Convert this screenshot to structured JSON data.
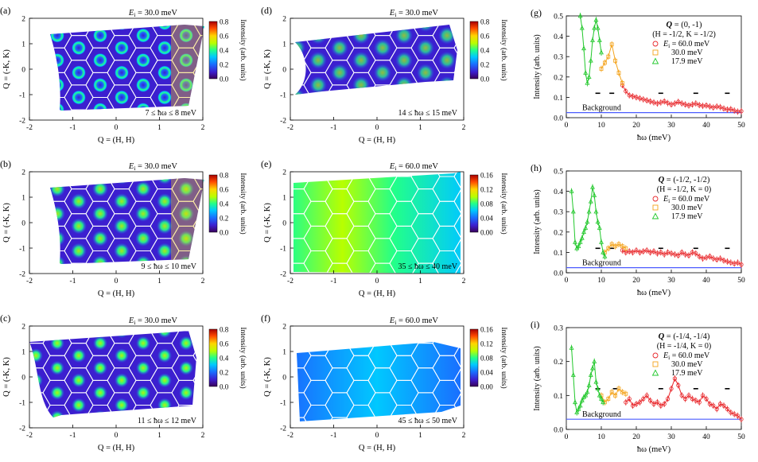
{
  "colors": {
    "cmap": [
      "#3a005a",
      "#3c1fcf",
      "#1a6cff",
      "#00c8ff",
      "#22ff8a",
      "#b8ff00",
      "#ffd500",
      "#ff4a00",
      "#a80000"
    ],
    "hex_grid": "#ffffff",
    "red": "#e8262a",
    "orange": "#f4a31b",
    "green": "#22c82c",
    "background_line": "#4b5bff"
  },
  "maps": [
    {
      "id": "a",
      "label": "(a)",
      "ei_text": "E",
      "ei_sub": "i",
      "ei_value": " = 30.0 meV",
      "range_text": "7 ≤ ħω ≤ 8 meV",
      "xlabel": "Q = (H, H)",
      "ylabel": "Q = (-K, K)",
      "xticks": [
        "-2",
        "-1",
        "0",
        "1",
        "2"
      ],
      "yticks": [
        "2",
        "1",
        "0",
        "-1",
        "-2"
      ],
      "cbar_ticks": [
        "0.8",
        "0.6",
        "0.4",
        "0.2",
        "0.0"
      ],
      "cbar_label": "Intensity (arb. units)"
    },
    {
      "id": "b",
      "label": "(b)",
      "ei_text": "E",
      "ei_sub": "i",
      "ei_value": " = 30.0 meV",
      "range_text": "9 ≤ ħω ≤ 10 meV",
      "xlabel": "Q = (H, H)",
      "ylabel": "Q = (-K, K)",
      "xticks": [
        "-2",
        "-1",
        "0",
        "1",
        "2"
      ],
      "yticks": [
        "2",
        "1",
        "0",
        "-1",
        "-2"
      ],
      "cbar_ticks": [
        "0.8",
        "0.6",
        "0.4",
        "0.2",
        "0.0"
      ],
      "cbar_label": "Intensity (arb. units)"
    },
    {
      "id": "c",
      "label": "(c)",
      "ei_text": "E",
      "ei_sub": "i",
      "ei_value": " = 30.0 meV",
      "range_text": "11 ≤ ħω ≤ 12 meV",
      "xlabel": "Q = (H, H)",
      "ylabel": "Q = (-K, K)",
      "xticks": [
        "-2",
        "-1",
        "0",
        "1",
        "2"
      ],
      "yticks": [
        "2",
        "1",
        "0",
        "-1",
        "-2"
      ],
      "cbar_ticks": [
        "0.8",
        "0.6",
        "0.4",
        "0.2",
        "0.0"
      ],
      "cbar_label": "Intensity (arb. units)"
    },
    {
      "id": "d",
      "label": "(d)",
      "ei_text": "E",
      "ei_sub": "i",
      "ei_value": " = 30.0 meV",
      "range_text": "14 ≤ ħω ≤ 15 meV",
      "xlabel": "Q = (H, H)",
      "ylabel": "Q = (-K, K)",
      "xticks": [
        "-2",
        "-1",
        "0",
        "1",
        "2"
      ],
      "yticks": [
        "2",
        "1",
        "0",
        "-1",
        "-2"
      ],
      "cbar_ticks": [
        "0.8",
        "0.6",
        "0.4",
        "0.2",
        "0.0"
      ],
      "cbar_label": "Intensity (arb. units)"
    },
    {
      "id": "e",
      "label": "(e)",
      "ei_text": "E",
      "ei_sub": "i",
      "ei_value": " = 60.0 meV",
      "range_text": "35 ≤ ħω ≤ 40 meV",
      "xlabel": "Q = (H, H)",
      "ylabel": "Q = (-K, K)",
      "xticks": [
        "-2",
        "-1",
        "0",
        "1",
        "2"
      ],
      "yticks": [
        "2",
        "1",
        "0",
        "-1",
        "-2"
      ],
      "cbar_ticks": [
        "0.16",
        "0.12",
        "0.08",
        "0.04",
        "0.00"
      ],
      "cbar_label": "Intensity (arb. units)"
    },
    {
      "id": "f",
      "label": "(f)",
      "ei_text": "E",
      "ei_sub": "i",
      "ei_value": " = 60.0 meV",
      "range_text": "45 ≤ ħω ≤ 50 meV",
      "xlabel": "Q = (H, H)",
      "ylabel": "Q = (-K, K)",
      "xticks": [
        "-2",
        "-1",
        "0",
        "1",
        "2"
      ],
      "yticks": [
        "2",
        "1",
        "0",
        "-1",
        "-2"
      ],
      "cbar_ticks": [
        "0.16",
        "0.12",
        "0.08",
        "0.04",
        "0.00"
      ],
      "cbar_label": "Intensity (arb. units)"
    }
  ],
  "cuts": [
    {
      "id": "g",
      "label": "(g)",
      "q_text": "Q",
      "q_value": " = (0, -1)",
      "hk_text": "(H = -1/2, K = -1/2)",
      "legend": [
        "E",
        "30.0 meV",
        "17.9 meV"
      ],
      "legend_first_value": " = 60.0 meV",
      "legend_first_sub": "i",
      "background_label": "Background",
      "xlabel": "ħω (meV)",
      "ylabel": "Intensity (arb. units)",
      "xticks": [
        "0",
        "10",
        "20",
        "30",
        "40",
        "50"
      ],
      "yticks": [
        "0.5",
        "0.4",
        "0.3",
        "0.2",
        "0.1",
        "0.0"
      ]
    },
    {
      "id": "h",
      "label": "(h)",
      "q_text": "Q",
      "q_value": " = (-1/2, -1/2)",
      "hk_text": "(H = -1/2, K = 0)",
      "legend": [
        "E",
        "30.0 meV",
        "17.9 meV"
      ],
      "legend_first_value": " = 60.0 meV",
      "legend_first_sub": "i",
      "background_label": "Background",
      "xlabel": "ħω (meV)",
      "ylabel": "Intensity (arb. units)",
      "xticks": [
        "0",
        "10",
        "20",
        "30",
        "40",
        "50"
      ],
      "yticks": [
        "0.5",
        "0.4",
        "0.3",
        "0.2",
        "0.1",
        "0.0"
      ]
    },
    {
      "id": "i",
      "label": "(i)",
      "q_text": "Q",
      "q_value": " = (-1/4, -1/4)",
      "hk_text": "(H = -1/4, K = 0)",
      "legend": [
        "E",
        "30.0 meV",
        "17.9 meV"
      ],
      "legend_first_value": " = 60.0 meV",
      "legend_first_sub": "i",
      "background_label": "Background",
      "xlabel": "ħω (meV)",
      "ylabel": "Intensity (arb. units)",
      "xticks": [
        "0",
        "10",
        "20",
        "30",
        "40",
        "50"
      ],
      "yticks": [
        "0.3",
        "0.2",
        "0.1",
        "0.0"
      ]
    }
  ],
  "chart_data": [
    {
      "type": "scatter",
      "panel": "g",
      "xlim": [
        0,
        50
      ],
      "ylim": [
        0,
        0.5
      ],
      "series": [
        {
          "name": "Ei = 60.0 meV",
          "color": "#e8262a",
          "x": [
            16,
            17,
            18,
            19,
            20,
            21,
            22,
            23,
            24,
            25,
            26,
            27,
            28,
            29,
            30,
            31,
            32,
            33,
            34,
            35,
            36,
            37,
            38,
            39,
            40,
            41,
            42,
            43,
            44,
            45,
            46,
            47,
            48,
            49,
            50
          ],
          "y": [
            0.16,
            0.13,
            0.11,
            0.105,
            0.1,
            0.095,
            0.09,
            0.085,
            0.08,
            0.075,
            0.07,
            0.075,
            0.08,
            0.072,
            0.065,
            0.07,
            0.078,
            0.07,
            0.065,
            0.06,
            0.065,
            0.07,
            0.062,
            0.058,
            0.06,
            0.055,
            0.05,
            0.055,
            0.052,
            0.045,
            0.04,
            0.042,
            0.035,
            0.03,
            0.032
          ]
        },
        {
          "name": "30.0 meV",
          "color": "#f4a31b",
          "x": [
            10,
            11,
            12,
            13,
            14,
            15,
            16
          ],
          "y": [
            0.24,
            0.27,
            0.3,
            0.36,
            0.28,
            0.22,
            0.17
          ]
        },
        {
          "name": "17.9 meV",
          "color": "#22c82c",
          "x": [
            4,
            4.5,
            5,
            5.5,
            6,
            6.5,
            7,
            7.5,
            8,
            8.5,
            9,
            9.5,
            10
          ],
          "y": [
            0.5,
            0.44,
            0.34,
            0.22,
            0.17,
            0.2,
            0.28,
            0.38,
            0.44,
            0.48,
            0.44,
            0.38,
            0.32
          ]
        }
      ],
      "background": 0.025,
      "bg_marks_x": [
        9,
        13,
        27,
        37,
        46
      ],
      "bg_marks_y": 0.12
    },
    {
      "type": "scatter",
      "panel": "h",
      "xlim": [
        0,
        50
      ],
      "ylim": [
        0,
        0.5
      ],
      "series": [
        {
          "name": "Ei = 60.0 meV",
          "color": "#e8262a",
          "x": [
            16,
            17,
            18,
            19,
            20,
            21,
            22,
            23,
            24,
            25,
            26,
            27,
            28,
            29,
            30,
            31,
            32,
            33,
            34,
            35,
            36,
            37,
            38,
            39,
            40,
            41,
            42,
            43,
            44,
            45,
            46,
            47,
            48,
            49,
            50
          ],
          "y": [
            0.11,
            0.1,
            0.105,
            0.1,
            0.11,
            0.1,
            0.105,
            0.11,
            0.1,
            0.105,
            0.095,
            0.1,
            0.09,
            0.1,
            0.095,
            0.09,
            0.085,
            0.1,
            0.09,
            0.085,
            0.1,
            0.095,
            0.08,
            0.07,
            0.075,
            0.08,
            0.07,
            0.065,
            0.07,
            0.06,
            0.055,
            0.05,
            0.045,
            0.05,
            0.04
          ]
        },
        {
          "name": "30.0 meV",
          "color": "#f4a31b",
          "x": [
            11,
            12,
            13,
            14,
            15,
            16,
            17
          ],
          "y": [
            0.1,
            0.12,
            0.14,
            0.13,
            0.14,
            0.13,
            0.12
          ]
        },
        {
          "name": "17.9 meV",
          "color": "#22c82c",
          "x": [
            1.5,
            2,
            2.5,
            3,
            3.5,
            4,
            4.5,
            5,
            5.5,
            6,
            6.5,
            7,
            7.5,
            8,
            8.5,
            9,
            9.5,
            10,
            10.5,
            11
          ],
          "y": [
            0.4,
            0.3,
            0.15,
            0.12,
            0.13,
            0.15,
            0.17,
            0.2,
            0.22,
            0.25,
            0.3,
            0.35,
            0.42,
            0.38,
            0.3,
            0.25,
            0.22,
            0.15,
            0.1,
            0.08
          ]
        }
      ],
      "background": 0.025,
      "bg_marks_x": [
        9,
        13,
        27,
        37,
        46
      ],
      "bg_marks_y": 0.12
    },
    {
      "type": "scatter",
      "panel": "i",
      "xlim": [
        0,
        50
      ],
      "ylim": [
        0,
        0.3
      ],
      "series": [
        {
          "name": "Ei = 60.0 meV",
          "color": "#e8262a",
          "x": [
            17,
            18,
            19,
            20,
            21,
            22,
            23,
            24,
            25,
            26,
            27,
            28,
            29,
            30,
            31,
            32,
            33,
            34,
            35,
            36,
            37,
            38,
            39,
            40,
            41,
            42,
            43,
            44,
            45,
            46,
            47,
            48,
            49,
            50
          ],
          "y": [
            0.08,
            0.09,
            0.07,
            0.075,
            0.08,
            0.09,
            0.1,
            0.085,
            0.075,
            0.08,
            0.07,
            0.075,
            0.09,
            0.12,
            0.15,
            0.13,
            0.1,
            0.09,
            0.1,
            0.09,
            0.085,
            0.08,
            0.1,
            0.09,
            0.075,
            0.07,
            0.06,
            0.075,
            0.07,
            0.06,
            0.05,
            0.045,
            0.04,
            0.03
          ]
        },
        {
          "name": "30.0 meV",
          "color": "#f4a31b",
          "x": [
            10,
            11,
            12,
            13,
            14,
            15,
            16,
            17
          ],
          "y": [
            0.1,
            0.08,
            0.09,
            0.11,
            0.1,
            0.12,
            0.11,
            0.105
          ]
        },
        {
          "name": "17.9 meV",
          "color": "#22c82c",
          "x": [
            1.5,
            2,
            2.5,
            3,
            3.5,
            4,
            4.5,
            5,
            5.5,
            6,
            6.5,
            7,
            7.5,
            8,
            8.5,
            9,
            9.5,
            10,
            10.5
          ],
          "y": [
            0.24,
            0.16,
            0.08,
            0.05,
            0.06,
            0.07,
            0.085,
            0.095,
            0.1,
            0.11,
            0.13,
            0.16,
            0.18,
            0.2,
            0.14,
            0.12,
            0.1,
            0.09,
            0.08
          ]
        }
      ],
      "background": 0.03,
      "bg_marks_x": [
        9,
        14,
        27,
        37,
        46
      ],
      "bg_marks_y": 0.12
    }
  ]
}
